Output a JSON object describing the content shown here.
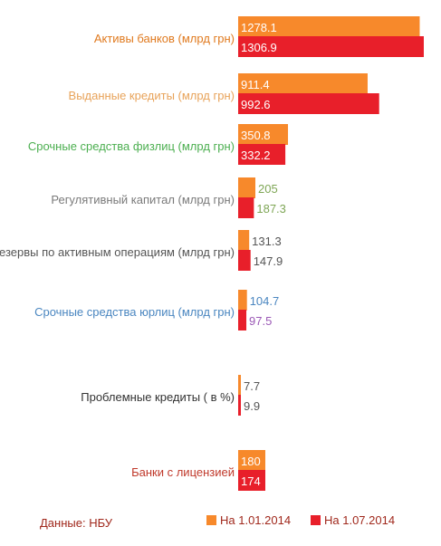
{
  "chart_data": {
    "type": "bar",
    "orientation": "horizontal",
    "categories": [
      "Активы банков (млрд грн)",
      "Выданные кредиты (млрд грн)",
      "Срочные средства физлиц (млрд грн)",
      "Регулятивный капитал (млрд грн)",
      "Резервы по активным операциям (млрд грн)",
      "Срочные средства юрлиц (млрд грн)",
      "Проблемные кредиты ( в %)",
      "Банки с лицензией"
    ],
    "category_colors": [
      "#e07a1f",
      "#e8a35a",
      "#4caf50",
      "#7a7a7a",
      "#555555",
      "#4a86c0",
      "#333333",
      "#c0392b"
    ],
    "series": [
      {
        "name": "На 1.01.2014",
        "color": "#f7892b",
        "values": [
          1278.1,
          911.4,
          350.8,
          205,
          131.3,
          104.7,
          7.7,
          180
        ],
        "labels": [
          "1278.1",
          "911.4",
          "350.8",
          "205",
          "131.3",
          "104.7",
          "7.7",
          "180"
        ],
        "label_colors": [
          "#ffffff",
          "#ffffff",
          "#ffffff",
          "#7ea655",
          "#555555",
          "#4a86c0",
          "#555555",
          "#ffffff"
        ]
      },
      {
        "name": "На 1.07.2014",
        "color": "#e81f2a",
        "values": [
          1306.9,
          992.6,
          332.2,
          187.3,
          147.9,
          97.5,
          9.9,
          174
        ],
        "labels": [
          "1306.9",
          "992.6",
          "332.2",
          "187.3",
          "147.9",
          "97.5",
          "9.9",
          "174"
        ],
        "label_colors": [
          "#ffffff",
          "#ffffff",
          "#ffffff",
          "#7ea655",
          "#555555",
          "#9b59b6",
          "#555555",
          "#ffffff"
        ]
      }
    ]
  },
  "footer": {
    "source": "Данные: НБУ"
  }
}
